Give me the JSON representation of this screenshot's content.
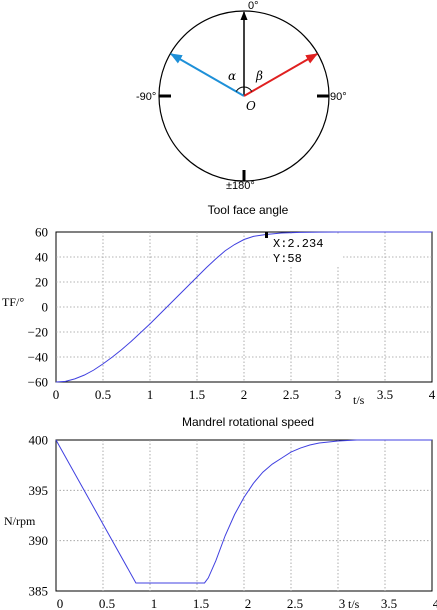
{
  "dial": {
    "labels": {
      "top": "0°",
      "left": "-90°",
      "right": "90°",
      "bottom": "±180°"
    },
    "alpha": "α",
    "beta": "β",
    "center": "O",
    "arrows": [
      {
        "name": "reference",
        "angle_deg": 0,
        "color": "#000000"
      },
      {
        "name": "alpha-vector",
        "angle_deg": -60,
        "color": "#1e90d8"
      },
      {
        "name": "beta-vector",
        "angle_deg": 60,
        "color": "#e02020"
      }
    ]
  },
  "chart_data": [
    {
      "type": "line",
      "title": "Tool face angle",
      "xlabel": "t/s",
      "ylabel": "TF/°",
      "xlim": [
        0,
        4
      ],
      "ylim": [
        -60,
        60
      ],
      "xticks": [
        0,
        0.5,
        1,
        1.5,
        2,
        2.5,
        3,
        3.5,
        4
      ],
      "xtick_labels": [
        "0",
        "0.5",
        "1",
        "1.5",
        "2",
        "2.5",
        "3",
        "3.5",
        "4"
      ],
      "yticks": [
        -60,
        -40,
        -20,
        0,
        20,
        40,
        60
      ],
      "ytick_labels": [
        "−60",
        "−40",
        "−20",
        "0",
        "20",
        "40",
        "60"
      ],
      "grid": true,
      "series": [
        {
          "color": "#4040e0",
          "x": [
            0,
            0.1,
            0.2,
            0.3,
            0.4,
            0.5,
            0.6,
            0.7,
            0.8,
            0.9,
            1.0,
            1.1,
            1.2,
            1.3,
            1.4,
            1.5,
            1.6,
            1.7,
            1.8,
            1.9,
            2.0,
            2.1,
            2.234,
            2.4,
            2.6,
            2.8,
            3.0,
            3.2,
            3.4,
            3.6,
            3.8,
            4.0
          ],
          "y": [
            -60,
            -59.5,
            -57.5,
            -54.5,
            -50.5,
            -45.5,
            -40,
            -34,
            -27.5,
            -20.5,
            -13.5,
            -6,
            1.5,
            9,
            16.5,
            24,
            31.5,
            38.5,
            45,
            50,
            54,
            56.5,
            58,
            59.2,
            59.7,
            59.9,
            60,
            60,
            60,
            60,
            60,
            60
          ]
        }
      ],
      "datatip": {
        "line1": "X:2.234",
        "line2": "Y:58"
      }
    },
    {
      "type": "line",
      "title": "Mandrel rotational speed",
      "xlabel": "t/s",
      "ylabel": "N/rpm",
      "xlim": [
        0,
        4
      ],
      "ylim": [
        385,
        400
      ],
      "xticks": [
        0,
        0.5,
        1,
        1.5,
        2,
        2.5,
        3,
        3.5,
        4
      ],
      "xtick_labels": [
        "0",
        "0.5",
        "1",
        "1.5",
        "2",
        "2.5",
        "3",
        "3.5",
        "4"
      ],
      "yticks": [
        385,
        390,
        395,
        400
      ],
      "ytick_labels": [
        "385",
        "390",
        "395",
        "400"
      ],
      "grid": true,
      "series": [
        {
          "color": "#4040e0",
          "x": [
            0,
            0.85,
            1.58,
            1.62,
            1.7,
            1.8,
            1.9,
            2.0,
            2.1,
            2.2,
            2.3,
            2.4,
            2.5,
            2.6,
            2.7,
            2.8,
            3.0,
            3.2,
            3.5,
            4.0
          ],
          "y": [
            400,
            385.8,
            385.8,
            386.3,
            388.0,
            390.5,
            392.6,
            394.3,
            395.7,
            396.8,
            397.6,
            398.2,
            398.8,
            399.2,
            399.5,
            399.7,
            399.9,
            400,
            400,
            400
          ]
        }
      ]
    }
  ]
}
